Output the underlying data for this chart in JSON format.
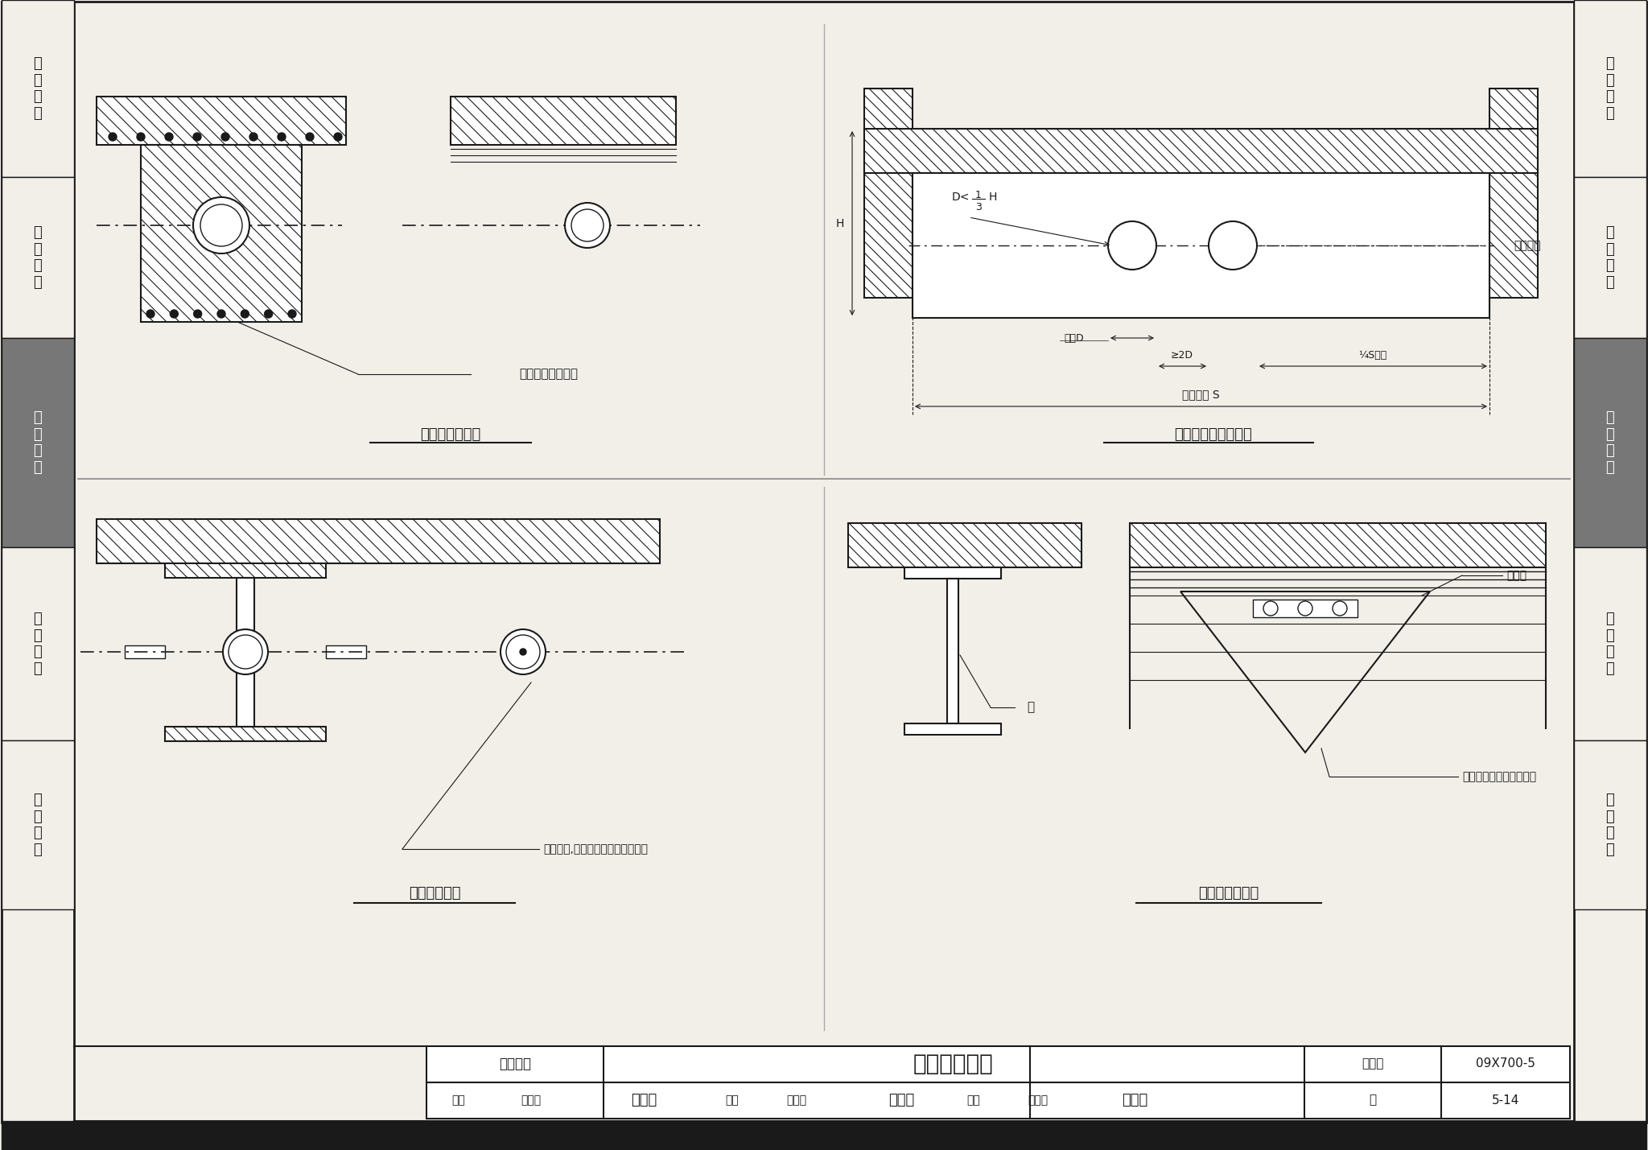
{
  "title": "钢管穿梁做法",
  "subtitle_left": "缆线敷设",
  "figure_number": "09X700-5",
  "page": "5-14",
  "bg_color": "#f2efe9",
  "active_label_bg": "#777777",
  "sidebar_sections": [
    [
      0,
      220,
      "机\n房\n工\n程",
      false
    ],
    [
      220,
      420,
      "供\n电\n电\n源",
      false
    ],
    [
      420,
      680,
      "缆\n线\n敷\n设",
      true
    ],
    [
      680,
      920,
      "设\n备\n安\n装",
      false
    ],
    [
      920,
      1130,
      "防\n雷\n接\n地",
      false
    ]
  ]
}
